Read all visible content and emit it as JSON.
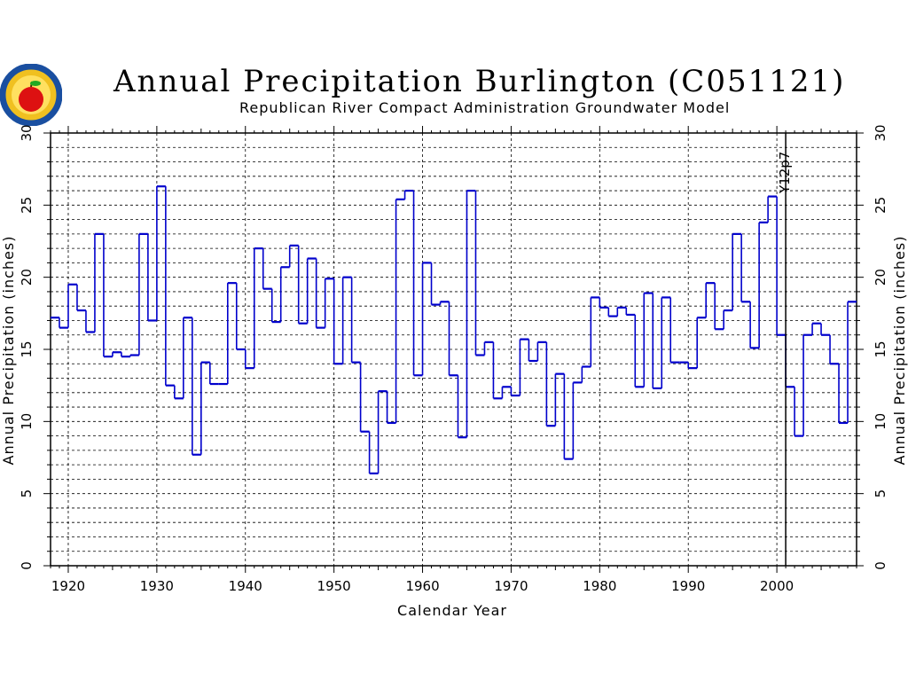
{
  "header": {
    "title": "Annual Precipitation Burlington (C051121)",
    "subtitle": "Republican River Compact Administration Groundwater Model"
  },
  "logo": {
    "name": "apple-seal-logo"
  },
  "chart_data": {
    "type": "line",
    "step": true,
    "title": "Annual Precipitation Burlington (C051121)",
    "subtitle": "Republican River Compact Administration Groundwater Model",
    "xlabel": "Calendar Year",
    "ylabel": "Annual Precipitation (inches)",
    "xlim": [
      1918,
      2009
    ],
    "ylim": [
      0,
      30
    ],
    "x_ticks": [
      1920,
      1930,
      1940,
      1950,
      1960,
      1970,
      1980,
      1990,
      2000
    ],
    "y_ticks": [
      0,
      5,
      10,
      15,
      20,
      25,
      30
    ],
    "grid": true,
    "annotations": [
      {
        "x": 2001,
        "label": "Y12p7"
      }
    ],
    "colors": {
      "series": "#0000cc",
      "grid": "#000000"
    },
    "series": [
      {
        "x": [
          1918,
          1919,
          1920,
          1921,
          1922,
          1923,
          1924,
          1925,
          1926,
          1927,
          1928,
          1929,
          1930,
          1931,
          1932,
          1933,
          1934,
          1935,
          1936,
          1937,
          1938,
          1939,
          1940,
          1941,
          1942,
          1943,
          1944,
          1945,
          1946,
          1947,
          1948,
          1949,
          1950,
          1951,
          1952,
          1953,
          1954,
          1955,
          1956,
          1957,
          1958,
          1959,
          1960,
          1961,
          1962,
          1963,
          1964,
          1965,
          1966,
          1967,
          1968,
          1969,
          1970,
          1971,
          1972,
          1973,
          1974,
          1975,
          1976,
          1977,
          1978,
          1979,
          1980,
          1981,
          1982,
          1983,
          1984,
          1985,
          1986,
          1987,
          1988,
          1989,
          1990,
          1991,
          1992,
          1993,
          1994,
          1995,
          1996,
          1997,
          1998,
          1999,
          2000,
          2001,
          2002,
          2003,
          2004,
          2005,
          2006,
          2007,
          2008
        ],
        "values": [
          17.2,
          16.5,
          19.5,
          17.7,
          16.2,
          23.0,
          14.5,
          14.8,
          14.5,
          14.6,
          23.0,
          17.0,
          26.3,
          12.5,
          11.6,
          17.2,
          7.7,
          14.1,
          12.6,
          12.6,
          19.6,
          15.0,
          13.7,
          22.0,
          19.2,
          16.9,
          20.7,
          22.2,
          16.8,
          21.3,
          16.5,
          19.9,
          14.0,
          20.0,
          14.1,
          9.3,
          6.4,
          12.1,
          9.9,
          25.4,
          26.0,
          13.2,
          21.0,
          18.1,
          18.3,
          13.2,
          8.9,
          26.0,
          14.6,
          15.5,
          11.6,
          12.4,
          11.8,
          15.7,
          14.2,
          15.5,
          9.7,
          13.3,
          7.4,
          12.7,
          13.8,
          18.6,
          17.9,
          17.3,
          17.9,
          17.4,
          12.4,
          18.9,
          12.3,
          18.6,
          14.1,
          14.1,
          13.7,
          17.2,
          19.6,
          16.4,
          17.7,
          23.0,
          18.3,
          15.1,
          23.8,
          25.6,
          16.0,
          12.4,
          9.0,
          16.0,
          16.8,
          16.0,
          14.0,
          9.9,
          18.3
        ]
      }
    ]
  },
  "labels": {
    "xticks": [
      "1920",
      "1930",
      "1940",
      "1950",
      "1960",
      "1970",
      "1980",
      "1990",
      "2000"
    ],
    "yticks": [
      "0",
      "5",
      "10",
      "15",
      "20",
      "25",
      "30"
    ],
    "xlabel": "Calendar Year",
    "ylabel": "Annual Precipitation (inches)",
    "annotation": "Y12p7"
  }
}
